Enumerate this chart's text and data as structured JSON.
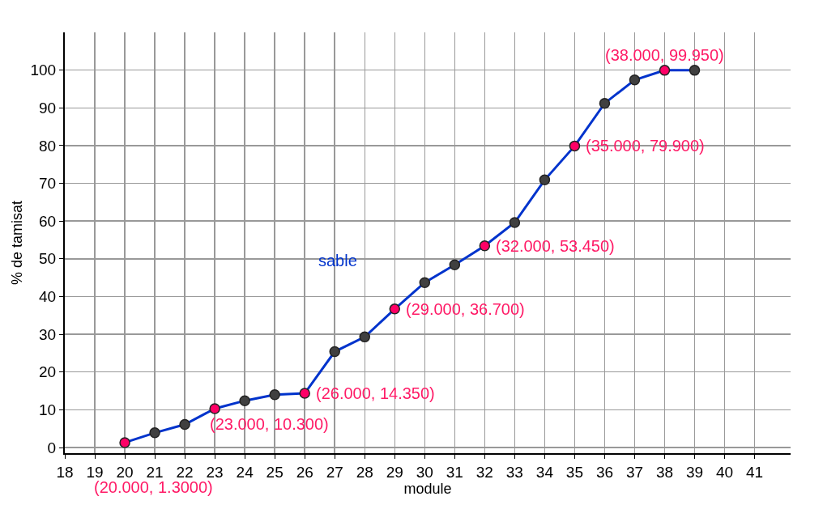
{
  "chart_data": {
    "type": "line",
    "xlabel": "module",
    "ylabel": "% de tamisat",
    "x": [
      20,
      21,
      22,
      23,
      24,
      25,
      26,
      27,
      28,
      29,
      30,
      31,
      32,
      33,
      34,
      35,
      36,
      37,
      38,
      39
    ],
    "series": [
      {
        "name": "sable",
        "color": "#0033cc",
        "colors": [
          "#ff0066",
          "#404040",
          "#404040",
          "#ff0066",
          "#404040",
          "#404040",
          "#ff0066",
          "#404040",
          "#404040",
          "#ff0066",
          "#404040",
          "#404040",
          "#ff0066",
          "#404040",
          "#404040",
          "#ff0066",
          "#404040",
          "#404040",
          "#ff0066",
          "#404040"
        ],
        "values": [
          1.3,
          3.9,
          6.1,
          10.3,
          12.4,
          14.0,
          14.35,
          25.4,
          29.3,
          36.7,
          43.7,
          48.4,
          53.45,
          59.6,
          70.9,
          79.9,
          91.2,
          97.4,
          99.95,
          99.95
        ]
      }
    ],
    "xlim": [
      18,
      42.2
    ],
    "xticks": [
      18,
      19,
      20,
      21,
      22,
      23,
      24,
      25,
      26,
      27,
      28,
      29,
      30,
      31,
      32,
      33,
      34,
      35,
      36,
      37,
      38,
      39,
      40,
      41
    ],
    "ylim": [
      -1.5,
      110
    ],
    "yticks": [
      0,
      10,
      20,
      30,
      40,
      50,
      60,
      70,
      80,
      90,
      100
    ],
    "grid": true,
    "legend": false,
    "marker": "circle",
    "line_style": "solid",
    "annotations": [
      {
        "text": "(20.000, 1.3000)",
        "x": 20,
        "y": 1.3
      },
      {
        "text": "(23.000, 10.300)",
        "x": 23,
        "y": 10.3
      },
      {
        "text": "(26.000, 14.350)",
        "x": 26,
        "y": 14.35
      },
      {
        "text": "(29.000, 36.700)",
        "x": 29,
        "y": 36.7
      },
      {
        "text": "(32.000, 53.450)",
        "x": 32,
        "y": 53.45
      },
      {
        "text": "(35.000, 79.900)",
        "x": 35,
        "y": 79.9
      },
      {
        "text": "(38.000, 99.950)",
        "x": 38,
        "y": 99.95
      }
    ]
  }
}
